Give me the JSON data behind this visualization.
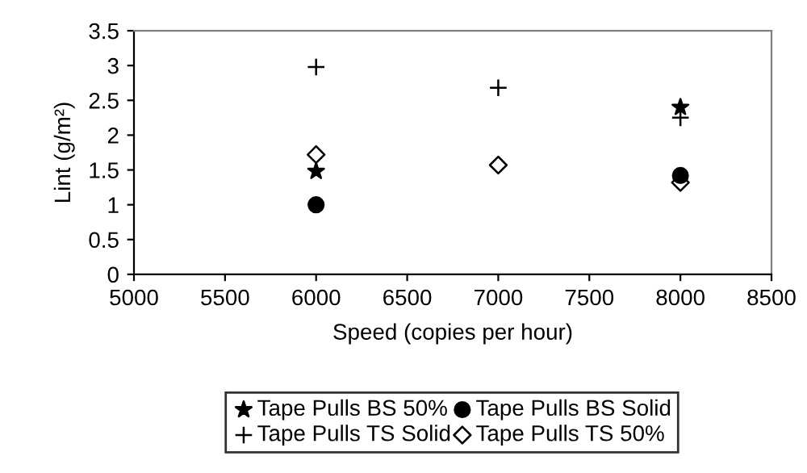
{
  "chart_data": {
    "type": "scatter",
    "xlabel": "Speed (copies per hour)",
    "ylabel": "Lint (g/m²)",
    "xlim": [
      5000,
      8500
    ],
    "xticks": [
      5000,
      5500,
      6000,
      6500,
      7000,
      7500,
      8000,
      8500
    ],
    "ylim": [
      0,
      3.5
    ],
    "yticks": [
      0,
      0.5,
      1,
      1.5,
      2,
      2.5,
      3,
      3.5
    ],
    "grid": false,
    "legend": "bottom",
    "series": [
      {
        "name": "Tape Pulls BS 50%",
        "color": "#000000",
        "marker": "star",
        "x": [
          6000,
          8000
        ],
        "values": [
          1.48,
          2.4
        ]
      },
      {
        "name": "Tape Pulls BS Solid",
        "color": "#000000",
        "marker": "circle",
        "x": [
          6000,
          8000
        ],
        "values": [
          1.0,
          1.42
        ]
      },
      {
        "name": "Tape Pulls TS Solid",
        "color": "#000000",
        "marker": "cross",
        "x": [
          6000,
          7000,
          8000
        ],
        "values": [
          2.98,
          2.68,
          2.25
        ]
      },
      {
        "name": "Tape Pulls TS 50%",
        "color": "#000000",
        "marker": "diamond",
        "x": [
          6000,
          7000,
          8000
        ],
        "values": [
          1.72,
          1.57,
          1.32
        ]
      }
    ]
  }
}
